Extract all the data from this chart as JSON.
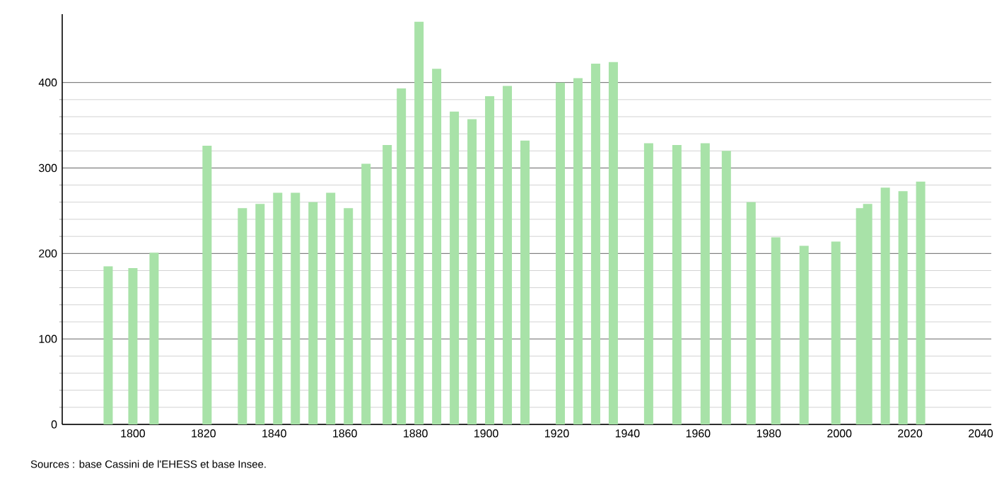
{
  "chart_data": {
    "type": "bar",
    "x": [
      1793,
      1800,
      1806,
      1821,
      1831,
      1836,
      1841,
      1846,
      1851,
      1856,
      1861,
      1866,
      1872,
      1876,
      1881,
      1886,
      1891,
      1896,
      1901,
      1906,
      1911,
      1921,
      1926,
      1931,
      1936,
      1946,
      1954,
      1962,
      1968,
      1975,
      1982,
      1990,
      1999,
      2006,
      2008,
      2013,
      2018,
      2023
    ],
    "values": [
      185,
      183,
      201,
      326,
      253,
      258,
      271,
      271,
      260,
      271,
      253,
      305,
      327,
      393,
      471,
      416,
      366,
      357,
      384,
      396,
      332,
      400,
      405,
      422,
      424,
      329,
      327,
      329,
      320,
      260,
      219,
      209,
      214,
      253,
      258,
      277,
      273,
      284
    ],
    "color": "#a8e2a8",
    "xlim": [
      1780,
      2043
    ],
    "xticks": [
      1800,
      1820,
      1840,
      1860,
      1880,
      1900,
      1920,
      1940,
      1960,
      1980,
      2000,
      2020,
      2040
    ],
    "ylim": [
      0,
      480
    ],
    "yticks": [
      0,
      100,
      200,
      300,
      400
    ],
    "grid": "y",
    "annotations": [
      "Sources : base Cassini de l'EHESS et base Insee."
    ]
  }
}
